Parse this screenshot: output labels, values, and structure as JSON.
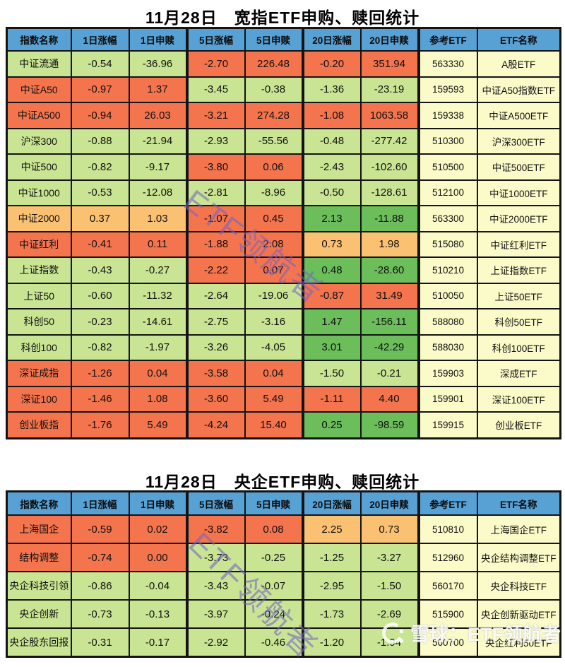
{
  "chart_data": [
    {
      "type": "table",
      "title": "11月28日　宽指ETF申购、赎回统计",
      "headers": [
        "指数名称",
        "1日涨幅",
        "1日申赎",
        "5日涨幅",
        "5日申赎",
        "20日涨幅",
        "20日申赎",
        "参考ETF",
        "ETF名称"
      ],
      "legend": {
        "g": "light-green (mild down/outflow)",
        "G": "dark-green (20日 up/strong inflow-out)",
        "r": "orange-red",
        "a": "amber"
      },
      "rows": [
        {
          "name": "中证流通",
          "values": [
            "-0.54",
            "-36.96",
            "-2.70",
            "226.48",
            "-0.20",
            "351.94"
          ],
          "cell_colors": [
            "g",
            "g",
            "g",
            "r",
            "r",
            "r",
            "r"
          ],
          "code": "563330",
          "etf": "A股ETF"
        },
        {
          "name": "中证A50",
          "values": [
            "-0.97",
            "1.37",
            "-3.45",
            "-0.38",
            "-1.36",
            "-23.19"
          ],
          "cell_colors": [
            "r",
            "r",
            "r",
            "g",
            "g",
            "g",
            "g"
          ],
          "code": "159593",
          "etf": "中证A50指数ETF"
        },
        {
          "name": "中证A500",
          "values": [
            "-0.94",
            "26.03",
            "-3.21",
            "274.28",
            "-1.08",
            "1063.58"
          ],
          "cell_colors": [
            "r",
            "r",
            "r",
            "r",
            "r",
            "r",
            "r"
          ],
          "code": "159338",
          "etf": "中证A500ETF"
        },
        {
          "name": "沪深300",
          "values": [
            "-0.88",
            "-21.94",
            "-2.93",
            "-55.56",
            "-0.48",
            "-277.42"
          ],
          "cell_colors": [
            "g",
            "g",
            "g",
            "g",
            "g",
            "g",
            "g"
          ],
          "code": "510300",
          "etf": "沪深300ETF"
        },
        {
          "name": "中证500",
          "values": [
            "-0.82",
            "-9.17",
            "-3.80",
            "0.06",
            "-2.43",
            "-102.60"
          ],
          "cell_colors": [
            "g",
            "g",
            "g",
            "r",
            "r",
            "g",
            "g"
          ],
          "code": "510500",
          "etf": "中证500ETF"
        },
        {
          "name": "中证1000",
          "values": [
            "-0.53",
            "-12.08",
            "-2.81",
            "-8.96",
            "-0.50",
            "-128.61"
          ],
          "cell_colors": [
            "g",
            "g",
            "g",
            "g",
            "g",
            "g",
            "g"
          ],
          "code": "512100",
          "etf": "中证1000ETF"
        },
        {
          "name": "中证2000",
          "values": [
            "0.37",
            "1.03",
            "-1.07",
            "0.45",
            "2.13",
            "-11.88"
          ],
          "cell_colors": [
            "a",
            "a",
            "a",
            "r",
            "r",
            "G",
            "G"
          ],
          "code": "563300",
          "etf": "中证2000ETF"
        },
        {
          "name": "中证红利",
          "values": [
            "-0.41",
            "0.11",
            "-1.88",
            "2.08",
            "0.73",
            "1.98"
          ],
          "cell_colors": [
            "r",
            "r",
            "r",
            "r",
            "r",
            "a",
            "a"
          ],
          "code": "515080",
          "etf": "中证红利ETF"
        },
        {
          "name": "上证指数",
          "values": [
            "-0.43",
            "-0.27",
            "-2.22",
            "0.07",
            "0.48",
            "-28.60"
          ],
          "cell_colors": [
            "g",
            "g",
            "g",
            "r",
            "r",
            "G",
            "G"
          ],
          "code": "510210",
          "etf": "上证指数ETF"
        },
        {
          "name": "上证50",
          "values": [
            "-0.60",
            "-11.32",
            "-2.64",
            "-19.06",
            "-0.87",
            "31.49"
          ],
          "cell_colors": [
            "g",
            "g",
            "g",
            "g",
            "g",
            "r",
            "r"
          ],
          "code": "510050",
          "etf": "上证50ETF"
        },
        {
          "name": "科创50",
          "values": [
            "-0.23",
            "-14.61",
            "-2.75",
            "-3.16",
            "1.47",
            "-156.11"
          ],
          "cell_colors": [
            "g",
            "g",
            "g",
            "g",
            "g",
            "G",
            "G"
          ],
          "code": "588080",
          "etf": "科创50ETF"
        },
        {
          "name": "科创100",
          "values": [
            "-0.82",
            "-1.97",
            "-3.26",
            "-4.05",
            "3.01",
            "-42.29"
          ],
          "cell_colors": [
            "g",
            "g",
            "g",
            "g",
            "g",
            "G",
            "G"
          ],
          "code": "588030",
          "etf": "科创100ETF"
        },
        {
          "name": "深证成指",
          "values": [
            "-1.26",
            "0.04",
            "-3.58",
            "0.04",
            "-1.50",
            "-0.21"
          ],
          "cell_colors": [
            "r",
            "r",
            "r",
            "r",
            "r",
            "g",
            "g"
          ],
          "code": "159903",
          "etf": "深成ETF"
        },
        {
          "name": "深证100",
          "values": [
            "-1.46",
            "1.08",
            "-3.60",
            "5.49",
            "-1.11",
            "4.40"
          ],
          "cell_colors": [
            "r",
            "r",
            "r",
            "r",
            "r",
            "r",
            "r"
          ],
          "code": "159901",
          "etf": "深证100ETF"
        },
        {
          "name": "创业板指",
          "values": [
            "-1.76",
            "5.49",
            "-4.24",
            "15.40",
            "0.25",
            "-98.59"
          ],
          "cell_colors": [
            "r",
            "r",
            "r",
            "r",
            "r",
            "G",
            "G"
          ],
          "code": "159915",
          "etf": "创业板ETF"
        }
      ]
    },
    {
      "type": "table",
      "title": "11月28日　央企ETF申购、赎回统计",
      "headers": [
        "指数名称",
        "1日涨幅",
        "1日申赎",
        "5日涨幅",
        "5日申赎",
        "20日涨幅",
        "20日申赎",
        "参考ETF",
        "ETF名称"
      ],
      "rows": [
        {
          "name": "上海国企",
          "values": [
            "-0.59",
            "0.02",
            "-3.82",
            "0.08",
            "2.25",
            "0.73"
          ],
          "cell_colors": [
            "r",
            "r",
            "r",
            "r",
            "r",
            "a",
            "a"
          ],
          "code": "510810",
          "etf": "上海国企ETF"
        },
        {
          "name": "结构调整",
          "values": [
            "-0.74",
            "0.00",
            "-3.73",
            "-0.25",
            "-1.25",
            "-3.27"
          ],
          "cell_colors": [
            "r",
            "r",
            "r",
            "g",
            "g",
            "g",
            "g"
          ],
          "code": "512960",
          "etf": "央企结构调整ETF"
        },
        {
          "name": "央企科技引领",
          "values": [
            "-0.86",
            "-0.04",
            "-3.43",
            "-0.07",
            "-2.95",
            "-1.50"
          ],
          "cell_colors": [
            "g",
            "g",
            "g",
            "g",
            "g",
            "g",
            "g"
          ],
          "code": "560170",
          "etf": "央企科技ETF"
        },
        {
          "name": "央企创新",
          "values": [
            "-0.73",
            "-0.13",
            "-3.97",
            "-0.24",
            "-1.73",
            "-2.69"
          ],
          "cell_colors": [
            "g",
            "g",
            "g",
            "g",
            "g",
            "g",
            "g"
          ],
          "code": "515900",
          "etf": "央企创新驱动ETF"
        },
        {
          "name": "央企股东回报",
          "values": [
            "-0.31",
            "-0.17",
            "-2.92",
            "-0.46",
            "-1.20",
            "-1.94"
          ],
          "cell_colors": [
            "g",
            "g",
            "g",
            "g",
            "g",
            "g",
            "g"
          ],
          "code": "560700",
          "etf": "央企红利50ETF"
        }
      ]
    }
  ],
  "colors": {
    "header_bg": "#58A1D5",
    "green_light": "#C9E593",
    "green_dark": "#6CBE5B",
    "orange_red": "#F4744D",
    "amber": "#FBC173",
    "ref_yellow": "#FBFBC9",
    "diagonal_watermark": "#7664C4"
  },
  "watermarks": {
    "diagonal_text": "ETF领航者",
    "corner_text": "雪球：ETF领航者"
  }
}
